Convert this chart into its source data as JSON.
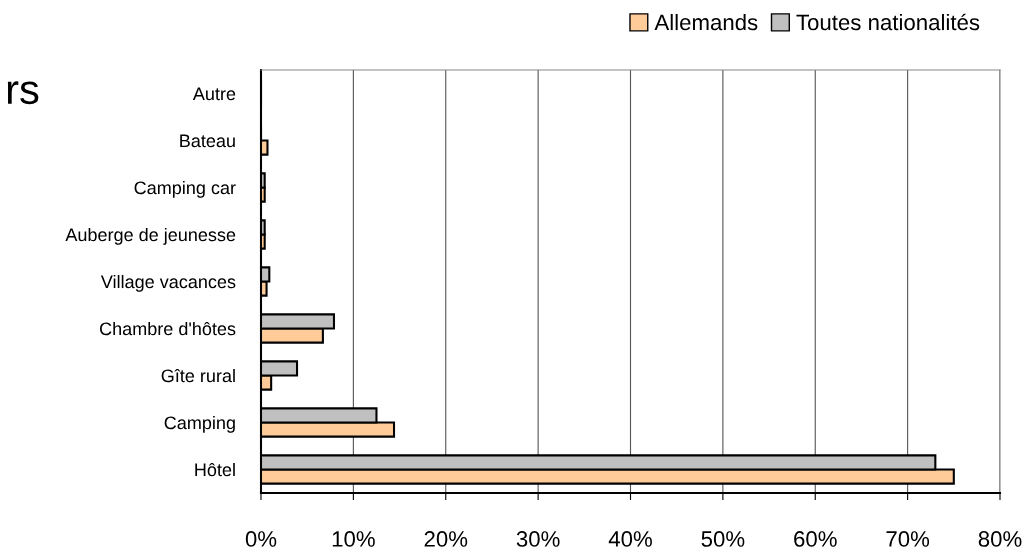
{
  "chart_data": {
    "type": "bar",
    "orientation": "horizontal",
    "title": "rs",
    "categories": [
      "Autre",
      "Bateau",
      "Camping car",
      "Auberge de jeunesse",
      "Village vacances",
      "Chambre d'hôtes",
      "Gîte rural",
      "Camping",
      "Hôtel"
    ],
    "series": [
      {
        "name": "Allemands",
        "color": "#ffcc99",
        "values": [
          0,
          0.7,
          0.4,
          0.4,
          0.6,
          6.7,
          1.1,
          14.4,
          75
        ]
      },
      {
        "name": "Toutes nationalités",
        "color": "#c0c0c0",
        "values": [
          0,
          0,
          0.4,
          0.4,
          0.9,
          7.9,
          3.9,
          12.5,
          73
        ]
      }
    ],
    "xlim": [
      0,
      80
    ],
    "xticks": [
      {
        "value": 0,
        "label": "0%"
      },
      {
        "value": 10,
        "label": "10%"
      },
      {
        "value": 20,
        "label": "20%"
      },
      {
        "value": 30,
        "label": "30%"
      },
      {
        "value": 40,
        "label": "40%"
      },
      {
        "value": 50,
        "label": "50%"
      },
      {
        "value": 60,
        "label": "60%"
      },
      {
        "value": 70,
        "label": "70%"
      },
      {
        "value": 80,
        "label": "80%"
      }
    ],
    "grid": "x",
    "legend": "top right"
  }
}
